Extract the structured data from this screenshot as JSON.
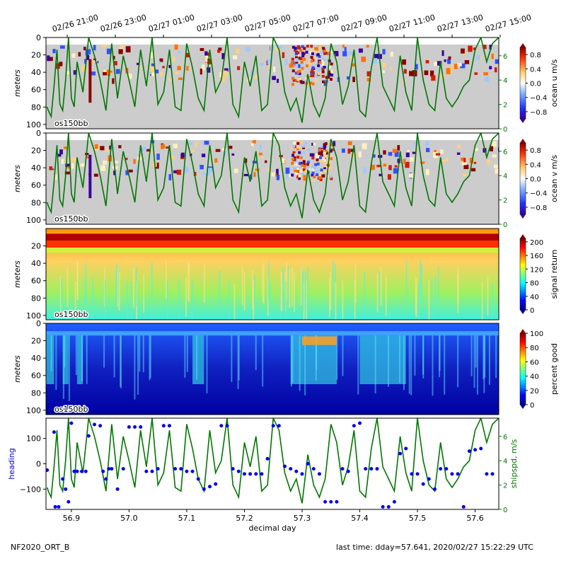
{
  "figure": {
    "top_time_ticks": [
      "02/26 21:00",
      "02/26 23:00",
      "02/27 01:00",
      "02/27 03:00",
      "02/27 05:00",
      "02/27 07:00",
      "02/27 09:00",
      "02/27 11:00",
      "02/27 13:00",
      "02/27 15:00"
    ],
    "bottom_label": "decimal day",
    "footer_left": "NF2020_ORT_B",
    "footer_right": "last time: dday=57.641,  2020/02/27 15:22:29 UTC",
    "colors": {
      "ship_speed": "#007700",
      "heading": "#0000ee",
      "nodata": "#cccccc"
    }
  },
  "chart_data": [
    {
      "type": "heatmap",
      "panel": "ocean-u",
      "instrument_label": "os150bb",
      "ylabel": "meters",
      "ylim": [
        105,
        0
      ],
      "y_ticks": [
        "0",
        "20",
        "40",
        "60",
        "80",
        "100"
      ],
      "xlim": [
        56.856,
        57.641
      ],
      "colorbar_label": "ocean u m/s",
      "colorbar_ticks": [
        "0.8",
        "0.4",
        "0.0",
        "−0.4",
        "−0.8"
      ],
      "colorbar_range": [
        -1.0,
        1.0
      ],
      "right_axis_ticks": [
        "0",
        "2",
        "4",
        "6"
      ],
      "overlay_series": "ship speed"
    },
    {
      "type": "heatmap",
      "panel": "ocean-v",
      "instrument_label": "os150bb",
      "ylabel": "meters",
      "ylim": [
        105,
        0
      ],
      "y_ticks": [
        "0",
        "20",
        "40",
        "60",
        "80",
        "100"
      ],
      "xlim": [
        56.856,
        57.641
      ],
      "colorbar_label": "ocean v m/s",
      "colorbar_ticks": [
        "0.8",
        "0.4",
        "0.0",
        "−0.4",
        "−0.8"
      ],
      "colorbar_range": [
        -1.0,
        1.0
      ],
      "right_axis_ticks": [
        "0",
        "2",
        "4",
        "6"
      ],
      "overlay_series": "ship speed"
    },
    {
      "type": "heatmap",
      "panel": "signal-return",
      "instrument_label": "os150bb",
      "ylabel": "meters",
      "ylim": [
        105,
        0
      ],
      "y_ticks": [
        "20",
        "40",
        "60",
        "80",
        "100"
      ],
      "xlim": [
        56.856,
        57.641
      ],
      "colorbar_label": "signal return",
      "colorbar_ticks": [
        "200",
        "160",
        "120",
        "80",
        "40",
        "0"
      ],
      "colorbar_range": [
        0,
        210
      ]
    },
    {
      "type": "heatmap",
      "panel": "percent-good",
      "instrument_label": "os150bb",
      "ylabel": "meters",
      "ylim": [
        105,
        0
      ],
      "y_ticks": [
        "0",
        "20",
        "40",
        "60",
        "80",
        "100"
      ],
      "xlim": [
        56.856,
        57.641
      ],
      "colorbar_label": "percent good",
      "colorbar_ticks": [
        "100",
        "80",
        "60",
        "40",
        "20",
        "0"
      ],
      "colorbar_range": [
        0,
        100
      ]
    },
    {
      "type": "scatter",
      "panel": "heading-speed",
      "xlabel": "decimal day",
      "x_ticks": [
        "56.9",
        "57.0",
        "57.1",
        "57.2",
        "57.3",
        "57.4",
        "57.5",
        "57.6"
      ],
      "x_tick_values": [
        56.9,
        57.0,
        57.1,
        57.2,
        57.3,
        57.4,
        57.5,
        57.6
      ],
      "xlim": [
        56.856,
        57.641
      ],
      "ylabel_left": "heading",
      "ylim_left": [
        -180,
        180
      ],
      "y_ticks_left": [
        "100",
        "0",
        "−100"
      ],
      "ylabel_right": "shipspd, m/s",
      "ylim_right": [
        0,
        7.5
      ],
      "y_ticks_right": [
        "0",
        "2",
        "4",
        "6"
      ],
      "series": [
        {
          "name": "heading",
          "x": [
            56.858,
            56.87,
            56.872,
            56.878,
            56.885,
            56.89,
            56.895,
            56.9,
            56.905,
            56.91,
            56.918,
            56.925,
            56.93,
            56.94,
            56.95,
            56.955,
            56.96,
            56.965,
            56.97,
            56.98,
            56.99,
            57.0,
            57.01,
            57.02,
            57.03,
            57.04,
            57.05,
            57.06,
            57.07,
            57.08,
            57.09,
            57.1,
            57.11,
            57.12,
            57.13,
            57.14,
            57.15,
            57.16,
            57.17,
            57.18,
            57.19,
            57.2,
            57.21,
            57.22,
            57.23,
            57.24,
            57.25,
            57.26,
            57.27,
            57.28,
            57.29,
            57.3,
            57.31,
            57.32,
            57.33,
            57.34,
            57.35,
            57.36,
            57.37,
            57.38,
            57.39,
            57.4,
            57.41,
            57.42,
            57.43,
            57.44,
            57.45,
            57.46,
            57.47,
            57.48,
            57.49,
            57.5,
            57.51,
            57.52,
            57.53,
            57.54,
            57.55,
            57.56,
            57.57,
            57.58,
            57.59,
            57.6,
            57.61,
            57.62,
            57.63
          ],
          "values": [
            -25,
            125,
            -170,
            -170,
            -60,
            -100,
            -150,
            160,
            -30,
            -30,
            -30,
            -30,
            110,
            155,
            150,
            -30,
            -60,
            -20,
            -20,
            -100,
            -20,
            145,
            145,
            145,
            -30,
            -30,
            -20,
            150,
            150,
            -20,
            -20,
            -30,
            -30,
            -60,
            -100,
            -90,
            -80,
            150,
            150,
            -20,
            -30,
            -40,
            -40,
            -40,
            -40,
            20,
            150,
            150,
            -10,
            -20,
            -30,
            -40,
            0,
            -20,
            -40,
            -150,
            -150,
            -150,
            -20,
            -30,
            150,
            160,
            -20,
            -20,
            -20,
            -170,
            -170,
            -150,
            40,
            60,
            -40,
            -40,
            -80,
            -60,
            -100,
            -20,
            -20,
            -40,
            -40,
            -170,
            50,
            55,
            60,
            -40,
            -40
          ]
        },
        {
          "name": "shipspd",
          "x": [
            56.858,
            56.86,
            56.865,
            56.87,
            56.875,
            56.88,
            56.885,
            56.89,
            56.895,
            56.9,
            56.905,
            56.91,
            56.92,
            56.93,
            56.94,
            56.95,
            56.96,
            56.97,
            56.98,
            56.99,
            57.0,
            57.01,
            57.02,
            57.03,
            57.04,
            57.05,
            57.06,
            57.07,
            57.08,
            57.09,
            57.1,
            57.11,
            57.12,
            57.13,
            57.14,
            57.15,
            57.16,
            57.17,
            57.18,
            57.19,
            57.2,
            57.21,
            57.22,
            57.23,
            57.24,
            57.25,
            57.26,
            57.27,
            57.28,
            57.29,
            57.3,
            57.31,
            57.32,
            57.33,
            57.34,
            57.35,
            57.36,
            57.37,
            57.38,
            57.39,
            57.4,
            57.41,
            57.42,
            57.43,
            57.44,
            57.45,
            57.46,
            57.47,
            57.48,
            57.49,
            57.5,
            57.51,
            57.52,
            57.53,
            57.54,
            57.55,
            57.56,
            57.57,
            57.58,
            57.59,
            57.6,
            57.61,
            57.62,
            57.63,
            57.641
          ],
          "values": [
            1.8,
            1.5,
            1.0,
            3.5,
            6.5,
            2.0,
            1.5,
            4.0,
            7.5,
            2.5,
            1.8,
            5.5,
            3.0,
            7.5,
            6.0,
            4.0,
            1.5,
            7.0,
            2.5,
            6.0,
            4.0,
            1.8,
            6.5,
            3.5,
            7.5,
            2.0,
            3.0,
            6.5,
            1.8,
            1.5,
            7.0,
            5.0,
            2.5,
            1.5,
            6.5,
            3.0,
            4.0,
            7.5,
            2.0,
            1.0,
            5.5,
            3.5,
            6.0,
            1.5,
            2.0,
            7.5,
            6.5,
            3.0,
            1.5,
            2.5,
            0.5,
            4.5,
            2.0,
            1.0,
            2.5,
            7.0,
            5.5,
            2.0,
            3.5,
            6.5,
            1.5,
            1.0,
            5.0,
            7.5,
            3.5,
            2.5,
            1.5,
            6.0,
            3.0,
            1.5,
            7.5,
            4.0,
            2.0,
            1.5,
            5.5,
            2.5,
            1.8,
            2.5,
            3.5,
            4.0,
            6.5,
            7.5,
            5.5,
            7.0,
            7.5
          ]
        }
      ]
    }
  ]
}
